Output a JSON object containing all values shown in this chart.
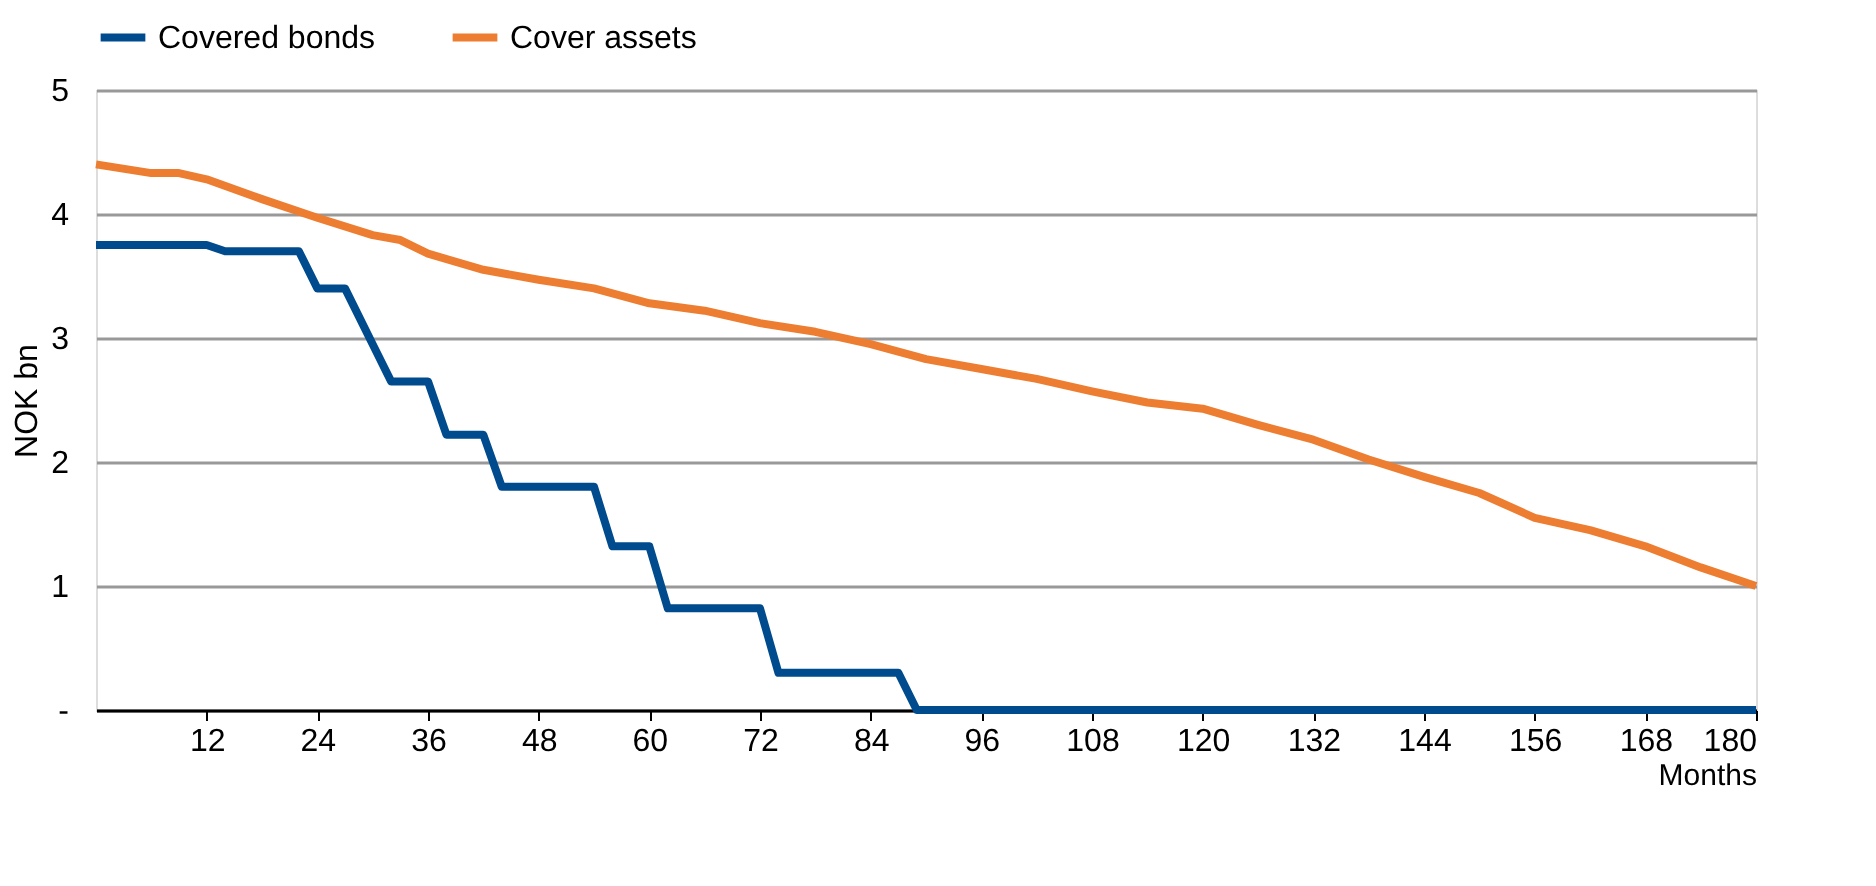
{
  "chart_data": {
    "type": "line",
    "xlabel": "Months",
    "ylabel": "NOK bn",
    "xlim": [
      0,
      180
    ],
    "xticks": [
      12,
      24,
      36,
      48,
      60,
      72,
      84,
      96,
      108,
      120,
      132,
      144,
      156,
      168,
      180
    ],
    "ylim": [
      0,
      5
    ],
    "yticks": [
      {
        "value": 0,
        "label": "-"
      },
      1,
      2,
      3,
      4,
      5
    ],
    "grid": "y",
    "legend": "top",
    "line_style": "solid",
    "marker": "none",
    "series": [
      {
        "name": "Covered bonds",
        "color": "#004b8d",
        "x": [
          0,
          12,
          14,
          22,
          24,
          27,
          30,
          32,
          36,
          38,
          42,
          44,
          54,
          56,
          60,
          62,
          72,
          74,
          87,
          89,
          180
        ],
        "values": [
          3.75,
          3.75,
          3.7,
          3.7,
          3.4,
          3.4,
          2.95,
          2.65,
          2.65,
          2.22,
          2.22,
          1.8,
          1.8,
          1.32,
          1.32,
          0.82,
          0.82,
          0.3,
          0.3,
          0,
          0
        ]
      },
      {
        "name": "Cover assets",
        "color": "#ed7d31",
        "x": [
          0,
          6,
          9,
          12,
          18,
          24,
          30,
          33,
          36,
          42,
          48,
          54,
          60,
          66,
          72,
          78,
          84,
          90,
          96,
          102,
          108,
          114,
          120,
          126,
          132,
          138,
          144,
          150,
          156,
          162,
          168,
          174,
          180
        ],
        "values": [
          4.4,
          4.33,
          4.33,
          4.28,
          4.12,
          3.97,
          3.83,
          3.79,
          3.68,
          3.55,
          3.47,
          3.4,
          3.28,
          3.22,
          3.12,
          3.05,
          2.95,
          2.83,
          2.75,
          2.67,
          2.57,
          2.48,
          2.43,
          2.3,
          2.18,
          2.02,
          1.88,
          1.75,
          1.55,
          1.45,
          1.32,
          1.15,
          1.0
        ]
      }
    ]
  }
}
